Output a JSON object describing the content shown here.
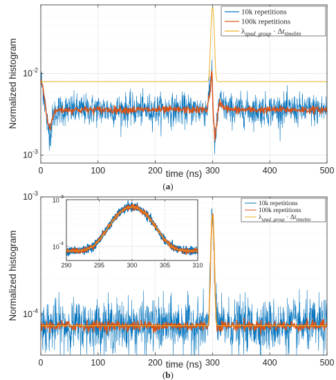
{
  "chart_data": [
    {
      "type": "line",
      "panel_label": "(a)",
      "xlabel": "time (ns)",
      "ylabel": "Normalized histogram",
      "xlim": [
        0,
        500
      ],
      "ylim": [
        0.0008,
        0.07
      ],
      "yscale": "log",
      "xticks": [
        0,
        100,
        200,
        300,
        400,
        500
      ],
      "yticks": [
        {
          "value": 0.01,
          "label": "10",
          "exp": "-2"
        },
        {
          "value": 0.001,
          "label": "10",
          "exp": "-3"
        }
      ],
      "grid": true,
      "legend_position": "top-right",
      "series": [
        {
          "name": "10k repetitions",
          "color": "#0072BD",
          "baseline": 0.0036,
          "noise": 0.22,
          "shape": [
            [
              0,
              0.0085
            ],
            [
              5,
              0.006
            ],
            [
              12,
              0.0022
            ],
            [
              17,
              0.0019
            ],
            [
              22,
              0.0031
            ],
            [
              30,
              0.0036
            ],
            [
              290,
              0.0036
            ],
            [
              296,
              0.0065
            ],
            [
              299,
              0.013
            ],
            [
              301,
              0.0035
            ],
            [
              304,
              0.0013
            ],
            [
              308,
              0.0025
            ],
            [
              312,
              0.0048
            ],
            [
              318,
              0.004
            ],
            [
              330,
              0.0036
            ],
            [
              500,
              0.0036
            ]
          ]
        },
        {
          "name": "100k repetitions",
          "color": "#D95319",
          "baseline": 0.0036,
          "noise": 0.05,
          "shape": [
            [
              0,
              0.0085
            ],
            [
              5,
              0.006
            ],
            [
              12,
              0.0025
            ],
            [
              17,
              0.0022
            ],
            [
              22,
              0.0032
            ],
            [
              30,
              0.0036
            ],
            [
              290,
              0.0036
            ],
            [
              296,
              0.0062
            ],
            [
              299,
              0.011
            ],
            [
              301,
              0.0037
            ],
            [
              304,
              0.0015
            ],
            [
              308,
              0.0026
            ],
            [
              312,
              0.0046
            ],
            [
              318,
              0.004
            ],
            [
              330,
              0.0036
            ],
            [
              500,
              0.0036
            ]
          ]
        },
        {
          "name_html": "λ<tspan dy='3' font-size='8' font-style='italic'>spad_group</tspan><tspan dy='-3'> · Δ</tspan><tspan font-style='italic'>t</tspan><tspan dy='3' font-size='8' font-style='italic'>timebin</tspan>",
          "legend_text": "λspad_group · Δttimebin",
          "color": "#EDB120",
          "baseline": 0.008,
          "peak": {
            "center": 300,
            "sigma": 2.3,
            "amplitude": 0.057
          }
        }
      ]
    },
    {
      "type": "line",
      "panel_label": "(b)",
      "xlabel": "time (ns)",
      "ylabel": "Normalized histogram",
      "xlim": [
        0,
        500
      ],
      "ylim": [
        4.5e-05,
        0.001
      ],
      "yscale": "log",
      "xticks": [
        0,
        100,
        200,
        300,
        400,
        500
      ],
      "yticks": [
        {
          "value": 0.001,
          "label": "10",
          "exp": "-3"
        },
        {
          "value": 0.0001,
          "label": "10",
          "exp": "-4"
        }
      ],
      "grid": true,
      "legend_position": "top-right",
      "series": [
        {
          "name": "10k repetitions",
          "color": "#0072BD",
          "baseline": 8e-05,
          "noise": 0.25,
          "peak": {
            "center": 300,
            "sigma": 2.3,
            "amplitude": 0.00062
          }
        },
        {
          "name": "100k repetitions",
          "color": "#D95319",
          "baseline": 8e-05,
          "noise": 0.05,
          "peak": {
            "center": 300,
            "sigma": 2.3,
            "amplitude": 0.00062
          }
        },
        {
          "legend_text": "λspad_group · Δttimebin",
          "color": "#EDB120",
          "baseline": 8e-05,
          "peak": {
            "center": 300,
            "sigma": 2.3,
            "amplitude": 0.00062
          }
        }
      ],
      "inset": {
        "xlim": [
          290,
          310
        ],
        "ylim": [
          5e-05,
          0.001
        ],
        "xticks": [
          290,
          295,
          300,
          305,
          310
        ],
        "yticks": [
          {
            "value": 0.001,
            "label": "10",
            "exp": "-3"
          },
          {
            "value": 0.0001,
            "label": "10",
            "exp": "-4"
          }
        ],
        "legend_position": "top-right"
      }
    }
  ],
  "legend": {
    "entry_10k": "10k repetitions",
    "entry_100k": "100k repetitions"
  },
  "captions": {
    "a": "(a)",
    "b": "(b)",
    "a_letter": "a",
    "b_letter": "b"
  }
}
